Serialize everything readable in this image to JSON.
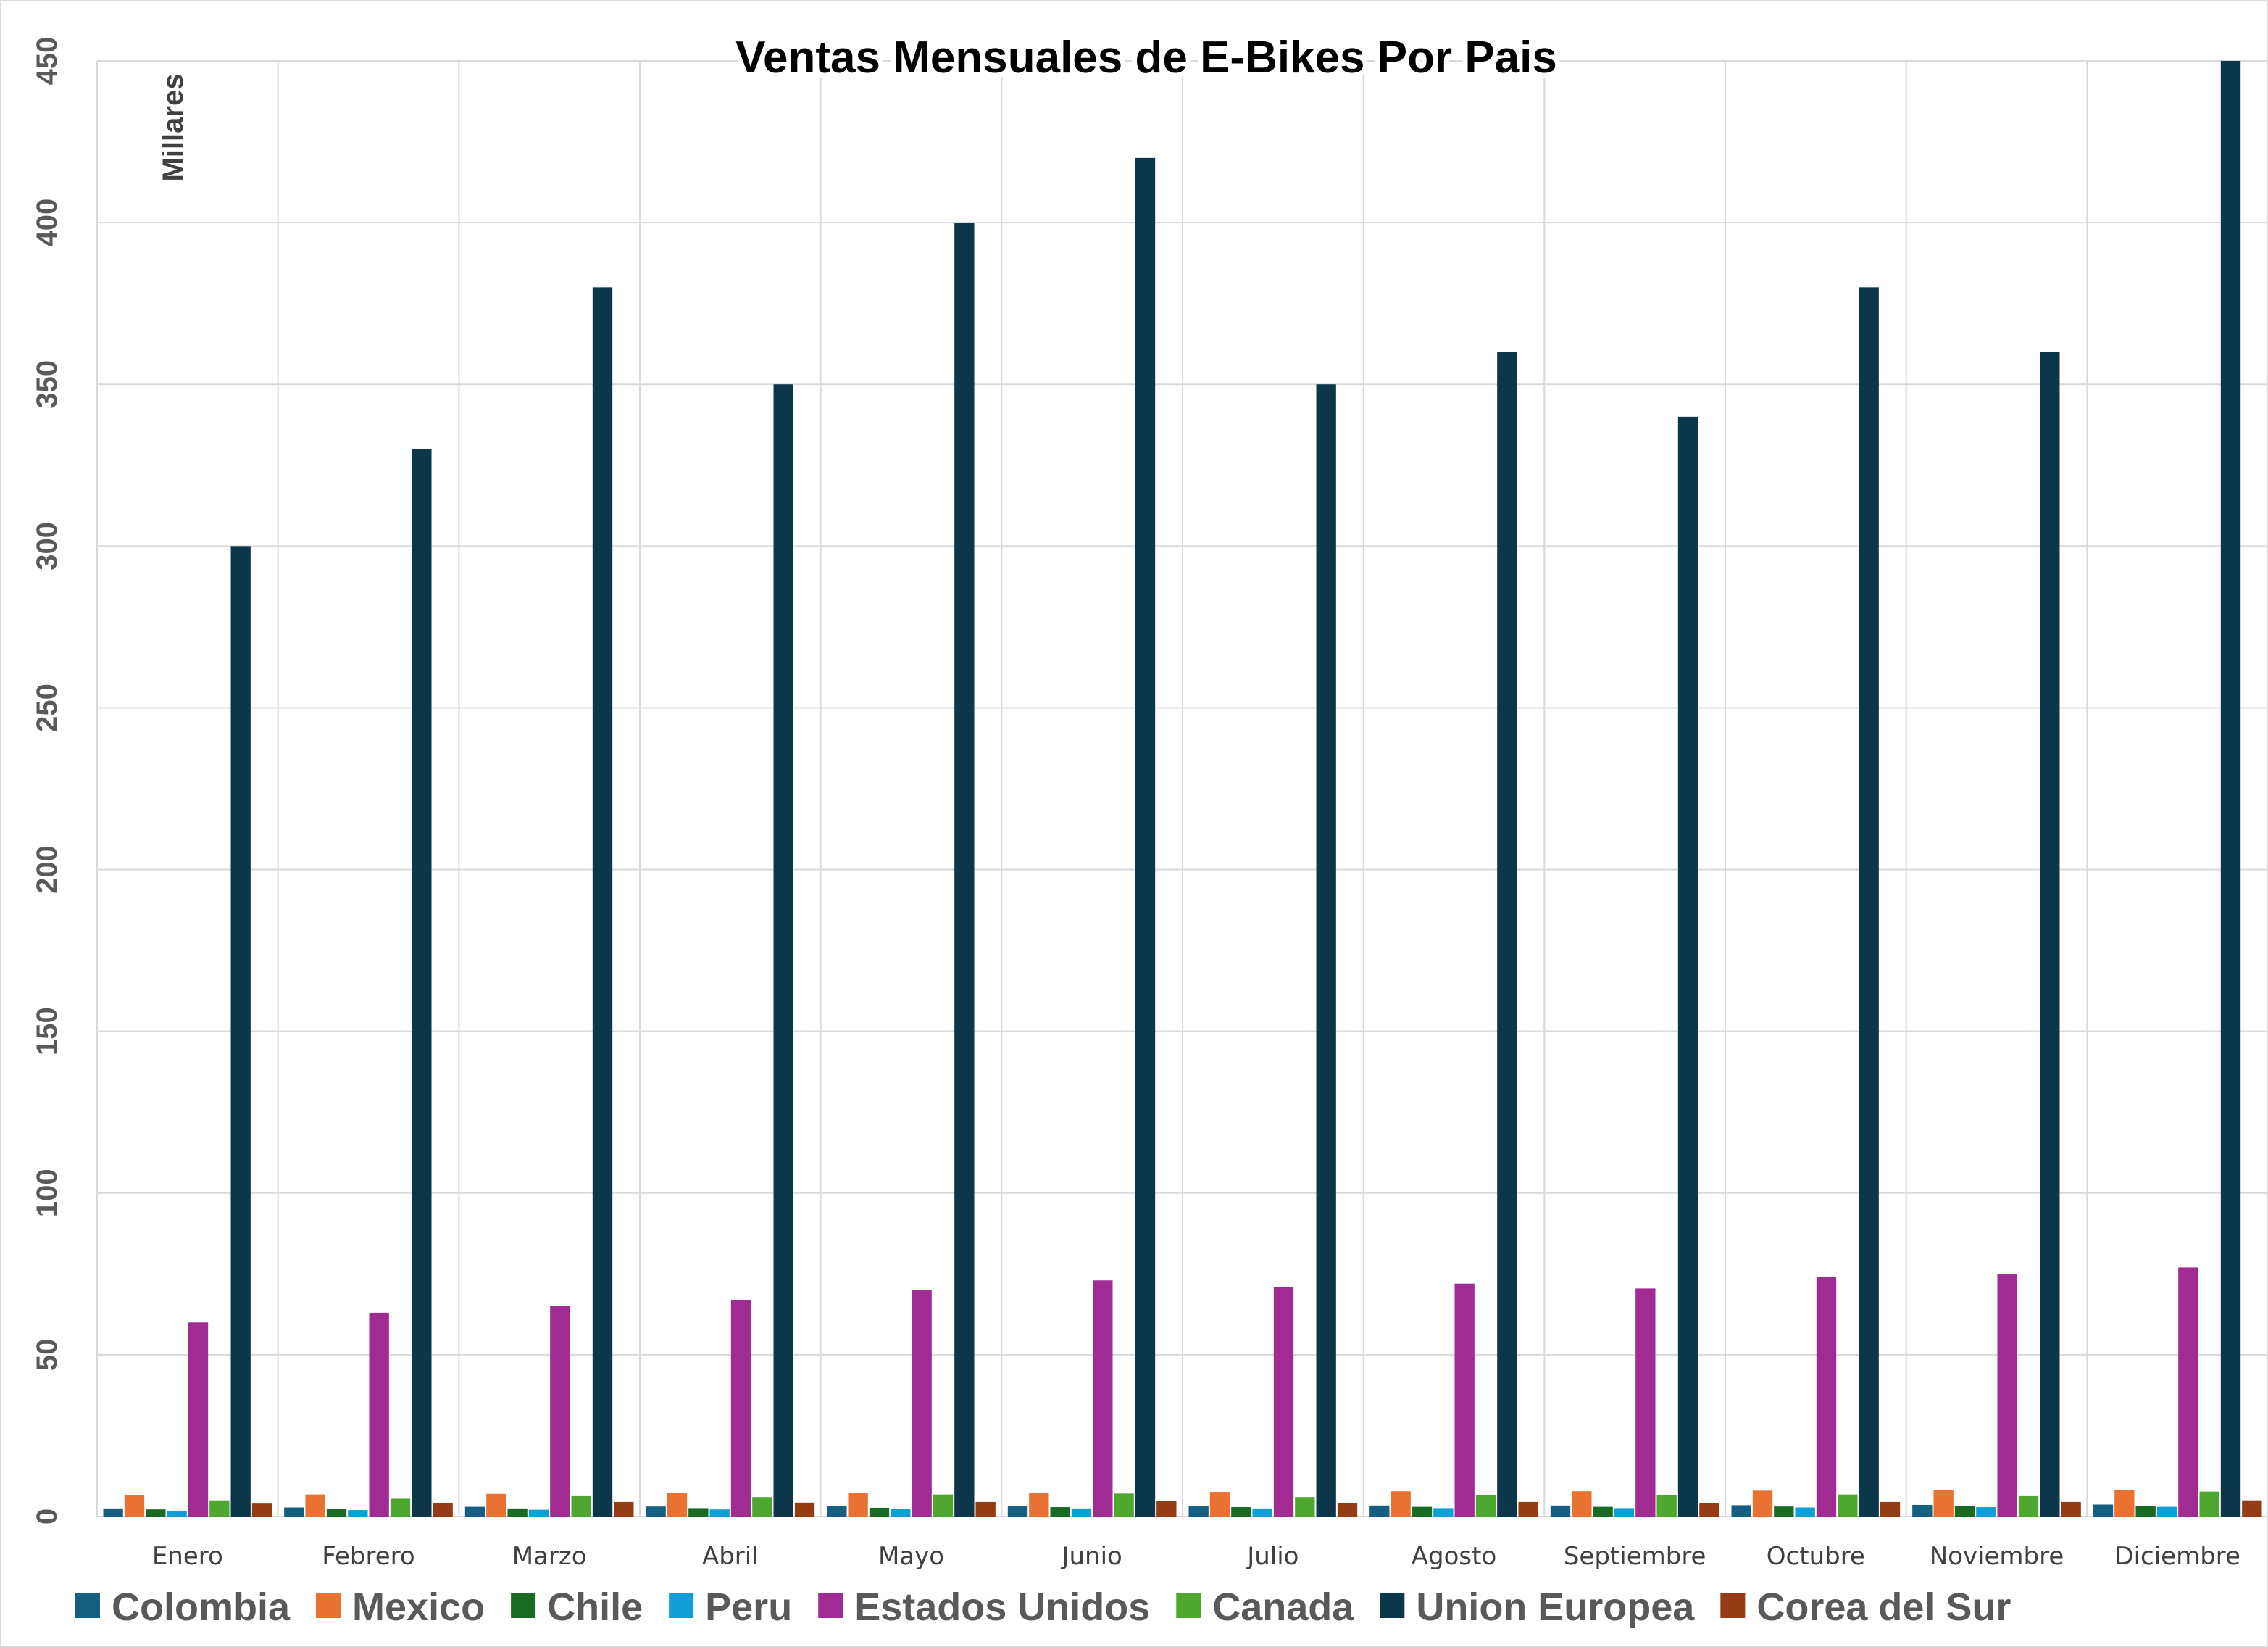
{
  "chart_data": {
    "type": "bar",
    "title": "Ventas Mensuales de E-Bikes  Por Pais",
    "y_unit_label": "Millares",
    "ylim": [
      0,
      450
    ],
    "yticks": [
      0,
      50,
      100,
      150,
      200,
      250,
      300,
      350,
      400,
      450
    ],
    "grid": true,
    "legend_position": "bottom",
    "categories": [
      "Enero",
      "Febrero",
      "Marzo",
      "Abril",
      "Mayo",
      "Junio",
      "Julio",
      "Agosto",
      "Septiembre",
      "Octubre",
      "Noviembre",
      "Diciembre"
    ],
    "series": [
      {
        "name": "Colombia",
        "color": "#156082",
        "values": [
          2.5,
          2.8,
          3.0,
          3.1,
          3.2,
          3.3,
          3.3,
          3.4,
          3.4,
          3.5,
          3.6,
          3.7
        ]
      },
      {
        "name": "Mexico",
        "color": "#E97132",
        "values": [
          6.5,
          6.8,
          7.0,
          7.2,
          7.2,
          7.4,
          7.6,
          7.8,
          7.8,
          8.0,
          8.2,
          8.3
        ]
      },
      {
        "name": "Chile",
        "color": "#196B24",
        "values": [
          2.2,
          2.4,
          2.5,
          2.6,
          2.7,
          2.9,
          2.9,
          3.0,
          3.0,
          3.1,
          3.2,
          3.3
        ]
      },
      {
        "name": "Peru",
        "color": "#0F9ED5",
        "values": [
          1.8,
          2.0,
          2.1,
          2.2,
          2.4,
          2.5,
          2.5,
          2.6,
          2.6,
          2.8,
          2.9,
          3.0
        ]
      },
      {
        "name": "Estados Unidos",
        "color": "#A02B93",
        "values": [
          60,
          63,
          65,
          67,
          70,
          73,
          71,
          72,
          70.5,
          74,
          75,
          77
        ]
      },
      {
        "name": "Canada",
        "color": "#4EA72E",
        "values": [
          5.0,
          5.5,
          6.3,
          6.0,
          6.8,
          7.1,
          6.0,
          6.5,
          6.5,
          6.8,
          6.3,
          7.7
        ]
      },
      {
        "name": "Union Europea",
        "color": "#0C3649",
        "values": [
          300,
          330,
          380,
          350,
          400,
          420,
          350,
          360,
          340,
          380,
          360,
          450
        ]
      },
      {
        "name": "Corea del Sur",
        "color": "#963C14",
        "values": [
          4.0,
          4.2,
          4.5,
          4.3,
          4.5,
          4.8,
          4.2,
          4.5,
          4.2,
          4.5,
          4.5,
          5.0
        ]
      }
    ]
  }
}
